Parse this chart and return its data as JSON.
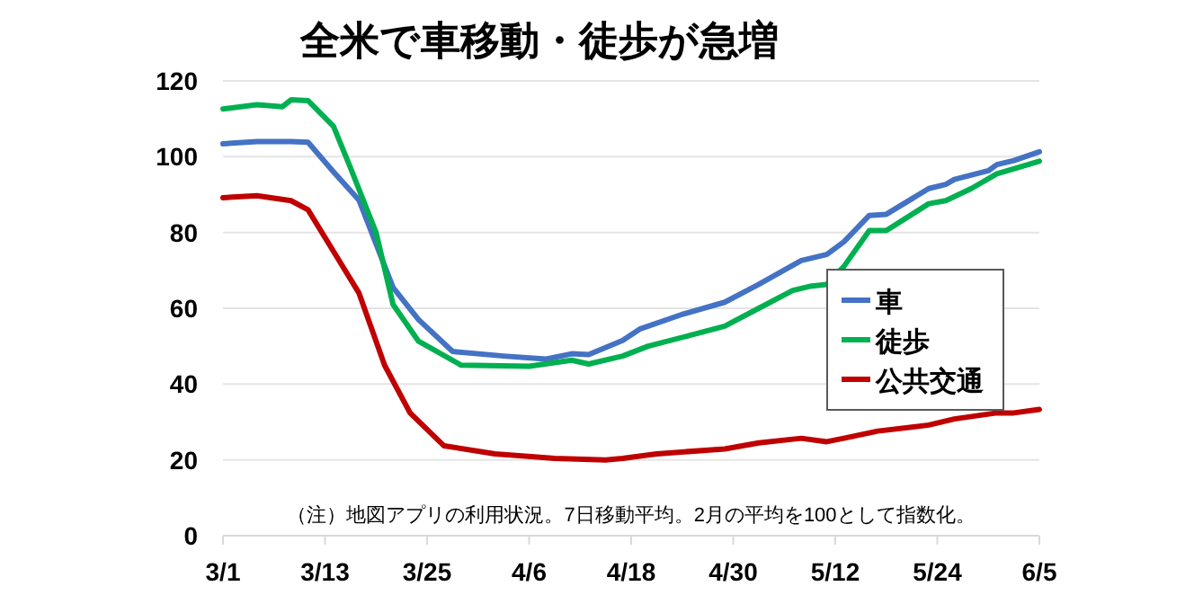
{
  "chart_data": {
    "type": "line",
    "title": "全米で車移動・徒歩が急増",
    "annotations": [
      "（注）地図アプリの利用状況。7日移動平均。2月の平均を100として指数化。"
    ],
    "xlim": [
      "--03-01",
      "--06-05"
    ],
    "xticks": [
      {
        "value": "--03-01",
        "label": "3/1"
      },
      {
        "value": "--03-13",
        "label": "3/13"
      },
      {
        "value": "--03-25",
        "label": "3/25"
      },
      {
        "value": "--04-06",
        "label": "4/6"
      },
      {
        "value": "--04-18",
        "label": "4/18"
      },
      {
        "value": "--04-30",
        "label": "4/30"
      },
      {
        "value": "--05-12",
        "label": "5/12"
      },
      {
        "value": "--05-24",
        "label": "5/24"
      },
      {
        "value": "--06-05",
        "label": "6/5"
      }
    ],
    "ylim": [
      0,
      120
    ],
    "yticks": [
      0,
      20,
      40,
      60,
      80,
      100,
      120
    ],
    "grid": "y",
    "legend": "right",
    "series": [
      {
        "name": "車",
        "color": "#4472c4",
        "x": [
          "--03-01",
          "--03-05",
          "--03-09",
          "--03-11",
          "--03-14",
          "--03-17",
          "--03-21",
          "--03-24",
          "--03-28",
          "--04-03",
          "--04-08",
          "--04-11",
          "--04-13",
          "--04-17",
          "--04-19",
          "--04-24",
          "--04-29",
          "--05-03",
          "--05-08",
          "--05-11",
          "--05-13",
          "--05-16",
          "--05-18",
          "--05-23",
          "--05-25",
          "--05-26",
          "--05-30",
          "--05-31",
          "--06-02",
          "--06-05"
        ],
        "values": [
          103.4,
          104,
          104,
          103.8,
          96,
          88.5,
          65.5,
          57,
          48.6,
          47.4,
          46.6,
          48,
          47.8,
          51.5,
          54.5,
          58.4,
          61.6,
          66.3,
          72.6,
          74.2,
          77.5,
          84.5,
          84.8,
          91.6,
          92.7,
          94,
          96.3,
          97.9,
          99,
          101.3
        ]
      },
      {
        "name": "徒歩",
        "color": "#00b050",
        "x": [
          "--03-01",
          "--03-05",
          "--03-08",
          "--03-09",
          "--03-11",
          "--03-14",
          "--03-16",
          "--03-19",
          "--03-21",
          "--03-24",
          "--03-29",
          "--04-06",
          "--04-11",
          "--04-13",
          "--04-17",
          "--04-20",
          "--04-25",
          "--04-29",
          "--05-03",
          "--05-07",
          "--05-09",
          "--05-11",
          "--05-13",
          "--05-16",
          "--05-18",
          "--05-23",
          "--05-25",
          "--05-28",
          "--05-31",
          "--06-05"
        ],
        "values": [
          112.6,
          113.7,
          113.2,
          115,
          114.8,
          108,
          97,
          80,
          61,
          51.3,
          45,
          44.7,
          46.3,
          45.3,
          47.4,
          50,
          52.9,
          55.3,
          60,
          64.7,
          65.8,
          66.3,
          71,
          80.5,
          80.5,
          87.6,
          88.4,
          91.6,
          95.5,
          98.8
        ]
      },
      {
        "name": "公共交通",
        "color": "#c00000",
        "x": [
          "--03-01",
          "--03-05",
          "--03-09",
          "--03-11",
          "--03-14",
          "--03-17",
          "--03-20",
          "--03-23",
          "--03-27",
          "--04-02",
          "--04-09",
          "--04-15",
          "--04-17",
          "--04-21",
          "--04-29",
          "--05-03",
          "--05-08",
          "--05-11",
          "--05-13",
          "--05-17",
          "--05-23",
          "--05-26",
          "--05-31",
          "--06-02",
          "--06-05"
        ],
        "values": [
          89.2,
          89.7,
          88.4,
          86,
          75,
          64,
          45,
          32.4,
          23.7,
          21.6,
          20.4,
          20,
          20.4,
          21.6,
          22.9,
          24.5,
          25.7,
          24.8,
          25.7,
          27.6,
          29.2,
          30.8,
          32.4,
          32.4,
          33.3
        ]
      }
    ]
  }
}
